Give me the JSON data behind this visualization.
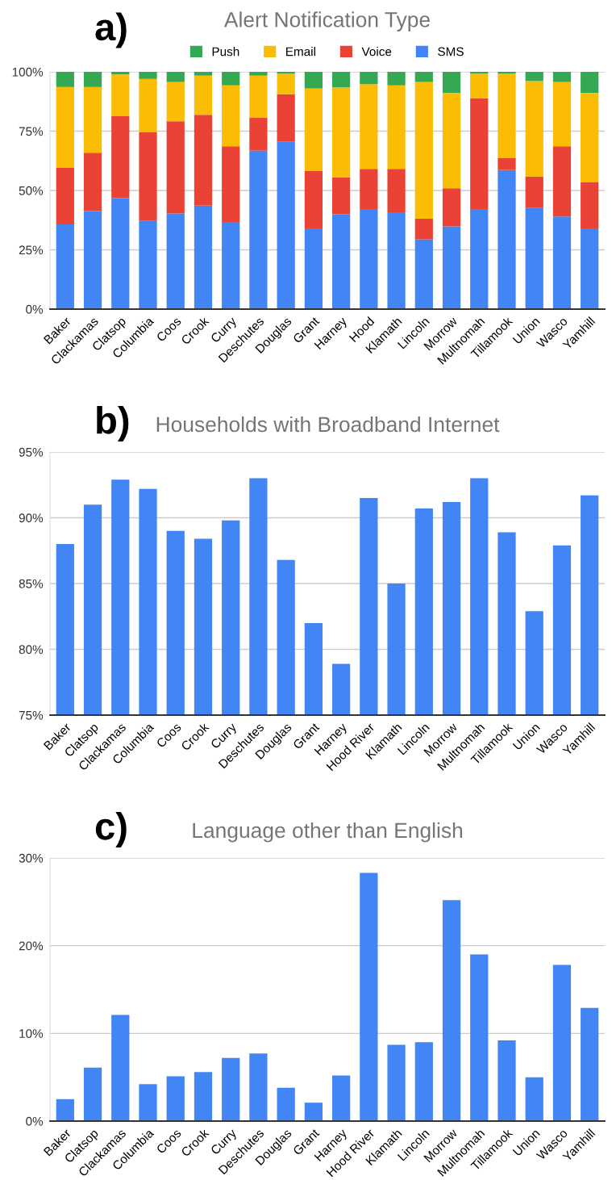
{
  "chart_data": [
    {
      "type": "bar",
      "title": "Alert Notification Type",
      "annotations": [
        "a)"
      ],
      "stacked": true,
      "legend": "top",
      "grid": "y",
      "categories": [
        "Baker",
        "Clackamas",
        "Clatsop",
        "Columbia",
        "Coos",
        "Crook",
        "Curry",
        "Deschutes",
        "Douglas",
        "Grant",
        "Harney",
        "Hood",
        "Klamath",
        "Lincoln",
        "Morrow",
        "Multnomah",
        "Tillamook",
        "Union",
        "Wasco",
        "Yamhill"
      ],
      "series": [
        {
          "name": "SMS",
          "color": "#4285f4",
          "values": [
            35.7,
            41.3,
            46.8,
            37.2,
            40.3,
            43.6,
            36.7,
            66.8,
            70.5,
            34.0,
            40.0,
            42.2,
            40.8,
            29.4,
            34.9,
            42.2,
            58.6,
            42.6,
            39.0,
            34.0
          ]
        },
        {
          "name": "Voice",
          "color": "#ea4335",
          "values": [
            23.8,
            24.6,
            34.7,
            37.3,
            38.9,
            38.3,
            31.9,
            13.8,
            20.1,
            24.2,
            15.5,
            16.9,
            18.3,
            8.7,
            16.0,
            46.7,
            5.0,
            13.3,
            29.6,
            19.6
          ]
        },
        {
          "name": "Email",
          "color": "#fbbc04",
          "values": [
            34.1,
            27.7,
            17.4,
            22.5,
            16.5,
            16.5,
            25.7,
            17.8,
            8.7,
            34.8,
            37.9,
            35.7,
            35.2,
            57.6,
            40.2,
            10.4,
            35.7,
            40.2,
            27.1,
            37.5
          ]
        },
        {
          "name": "Push",
          "color": "#34a853",
          "values": [
            6.4,
            6.4,
            1.1,
            3.0,
            4.3,
            1.6,
            5.7,
            1.6,
            0.7,
            7.0,
            6.6,
            5.2,
            5.7,
            4.3,
            8.9,
            0.7,
            0.7,
            3.9,
            4.3,
            8.9
          ]
        }
      ],
      "ylim": [
        0,
        100
      ],
      "yticks": [
        {
          "value": 0,
          "label": "0%"
        },
        {
          "value": 25,
          "label": "25%"
        },
        {
          "value": 50,
          "label": "50%"
        },
        {
          "value": 75,
          "label": "75%"
        },
        {
          "value": 100,
          "label": "100%"
        }
      ]
    },
    {
      "type": "bar",
      "title": "Households with Broadband Internet",
      "annotations": [
        "b)"
      ],
      "grid": "y",
      "legend": false,
      "categories": [
        "Baker",
        "Clatsop",
        "Clackamas",
        "Columbia",
        "Coos",
        "Crook",
        "Curry",
        "Deschutes",
        "Douglas",
        "Grant",
        "Harney",
        "Hood River",
        "Klamath",
        "Lincoln",
        "Morrow",
        "Multnomah",
        "Tillamook",
        "Union",
        "Wasco",
        "Yamhill"
      ],
      "series": [
        {
          "color": "#4285f4",
          "values": [
            88.0,
            91.0,
            92.9,
            92.2,
            89.0,
            88.4,
            89.8,
            93.0,
            86.8,
            82.0,
            78.9,
            91.5,
            85.0,
            90.7,
            91.2,
            93.0,
            88.9,
            82.9,
            87.9,
            91.7
          ]
        }
      ],
      "ylim": [
        75,
        95
      ],
      "yticks": [
        {
          "value": 75,
          "label": "75%"
        },
        {
          "value": 80,
          "label": "80%"
        },
        {
          "value": 85,
          "label": "85%"
        },
        {
          "value": 90,
          "label": "90%"
        },
        {
          "value": 95,
          "label": "95%"
        }
      ]
    },
    {
      "type": "bar",
      "title": "Language other than English",
      "annotations": [
        "c)"
      ],
      "grid": "y",
      "legend": false,
      "categories": [
        "Baker",
        "Clatsop",
        "Clackamas",
        "Columbia",
        "Coos",
        "Crook",
        "Curry",
        "Deschutes",
        "Douglas",
        "Grant",
        "Harney",
        "Hood River",
        "Klamath",
        "Lincoln",
        "Morrow",
        "Multnomah",
        "Tillamook",
        "Union",
        "Wasco",
        "Yamhill"
      ],
      "series": [
        {
          "color": "#4285f4",
          "values": [
            2.5,
            6.1,
            12.1,
            4.2,
            5.1,
            5.6,
            7.2,
            7.7,
            3.8,
            2.1,
            5.2,
            28.3,
            8.7,
            9.0,
            25.2,
            19.0,
            9.2,
            5.0,
            17.8,
            12.9
          ]
        }
      ],
      "ylim": [
        0,
        30
      ],
      "yticks": [
        {
          "value": 0,
          "label": "0%"
        },
        {
          "value": 10,
          "label": "10%"
        },
        {
          "value": 20,
          "label": "20%"
        },
        {
          "value": 30,
          "label": "30%"
        }
      ]
    }
  ]
}
